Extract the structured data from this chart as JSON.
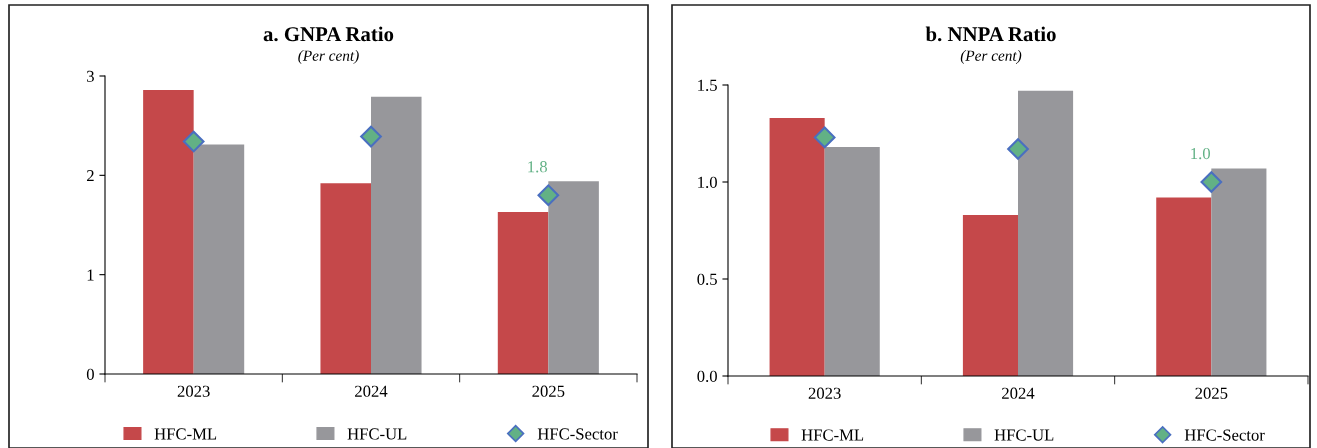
{
  "chart_data": [
    {
      "type": "bar",
      "title": "a. GNPA Ratio",
      "subtitle": "(Per cent)",
      "categories": [
        "2023",
        "2024",
        "2025"
      ],
      "ylim": [
        0,
        3
      ],
      "yticks": [
        0,
        1,
        2,
        3
      ],
      "legend": "bottom",
      "grid": false,
      "series": [
        {
          "name": "HFC-ML",
          "color": "#c5484a",
          "values": [
            2.86,
            1.92,
            1.63
          ]
        },
        {
          "name": "HFC-UL",
          "color": "#97979b",
          "values": [
            2.31,
            2.79,
            1.94
          ]
        },
        {
          "name": "HFC-Sector",
          "type": "scatter",
          "marker": "diamond",
          "color": "#62b185",
          "values": [
            2.34,
            2.39,
            1.8
          ],
          "value_labels": [
            null,
            null,
            "1.8"
          ]
        }
      ]
    },
    {
      "type": "bar",
      "title": "b. NNPA Ratio",
      "subtitle": "(Per cent)",
      "categories": [
        "2023",
        "2024",
        "2025"
      ],
      "ylim": [
        0,
        1.5
      ],
      "yticks": [
        {
          "value": 0,
          "label": "0.0"
        },
        0.5,
        {
          "value": 1,
          "label": "1.0"
        },
        1.5
      ],
      "legend": "bottom",
      "grid": false,
      "series": [
        {
          "name": "HFC-ML",
          "color": "#c5484a",
          "values": [
            1.33,
            0.83,
            0.92
          ]
        },
        {
          "name": "HFC-UL",
          "color": "#97979b",
          "values": [
            1.18,
            1.47,
            1.07
          ]
        },
        {
          "name": "HFC-Sector",
          "type": "scatter",
          "marker": "diamond",
          "color": "#62b185",
          "values": [
            1.23,
            1.17,
            1.0
          ],
          "value_labels": [
            null,
            null,
            "1.0"
          ]
        }
      ]
    }
  ]
}
